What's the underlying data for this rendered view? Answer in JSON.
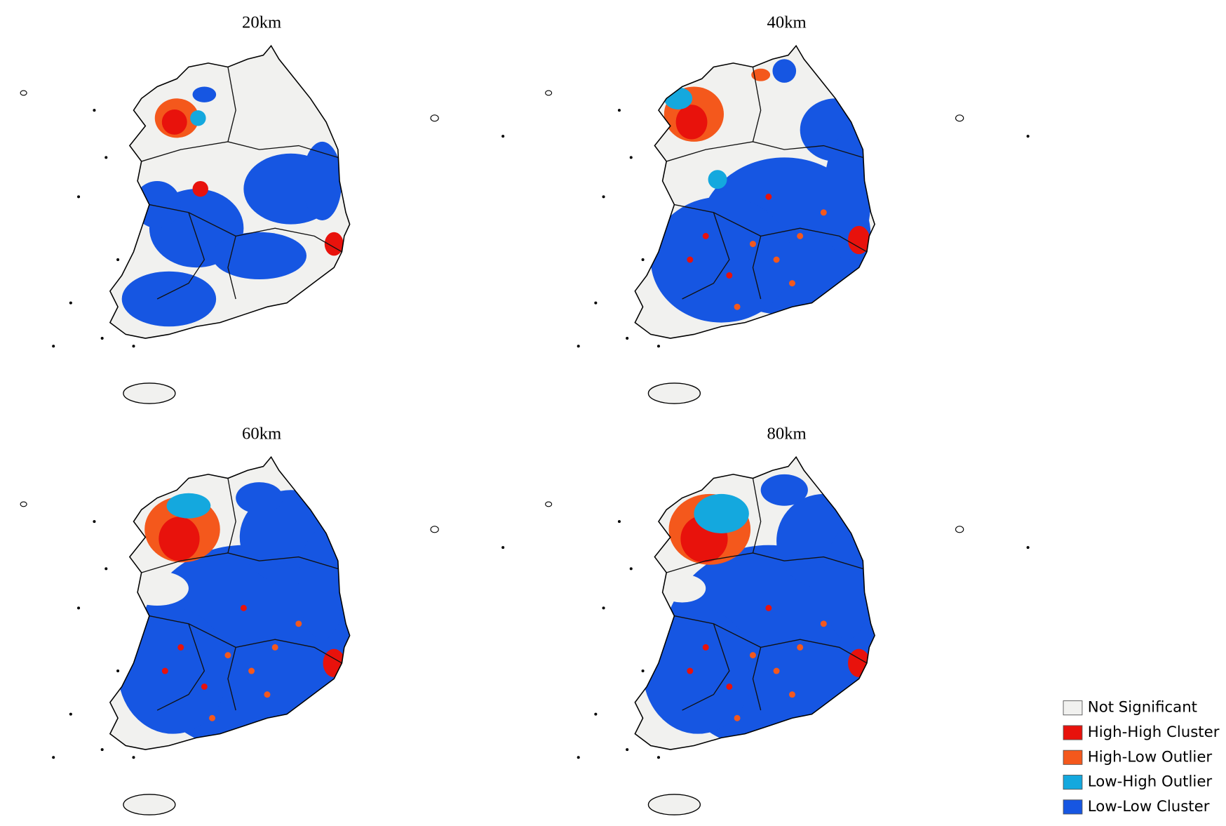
{
  "panels": [
    {
      "title": "20km"
    },
    {
      "title": "40km"
    },
    {
      "title": "60km"
    },
    {
      "title": "80km"
    }
  ],
  "legend": [
    {
      "label": "Not Significant",
      "color": "#f1f1ef"
    },
    {
      "label": "High-High Cluster",
      "color": "#e8120c"
    },
    {
      "label": "High-Low Outlier",
      "color": "#f4581c"
    },
    {
      "label": "Low-High Outlier",
      "color": "#14a8de"
    },
    {
      "label": "Low-Low Cluster",
      "color": "#1656e2"
    }
  ]
}
